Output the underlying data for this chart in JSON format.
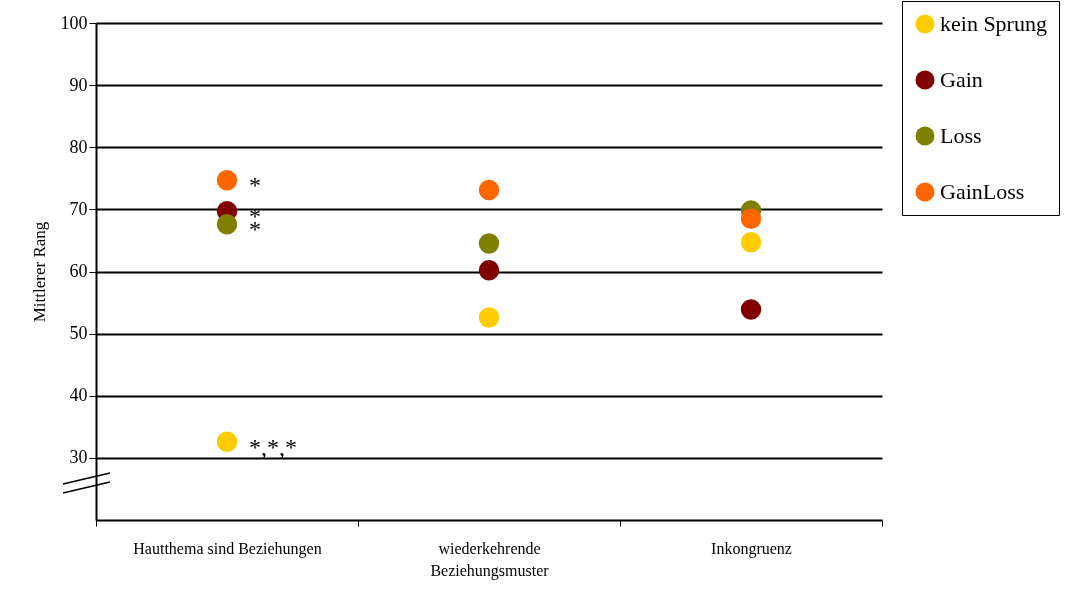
{
  "chart_data": {
    "type": "scatter",
    "ylabel": "Mittlerer Rang",
    "categories": [
      "Hautthema sind Beziehungen",
      "wiederkehrende Beziehungsmuster",
      "Inkongruenz"
    ],
    "series": [
      {
        "name": "kein Sprung",
        "color": "#ffcc00",
        "values": [
          32.6,
          52.6,
          64.7
        ]
      },
      {
        "name": "Gain",
        "color": "#800000",
        "values": [
          69.7,
          60.2,
          53.9
        ]
      },
      {
        "name": "Loss",
        "color": "#808000",
        "values": [
          67.6,
          64.5,
          69.8
        ]
      },
      {
        "name": "GainLoss",
        "color": "#ff6600",
        "values": [
          74.7,
          73.1,
          68.5
        ]
      }
    ],
    "ylim": [
      20,
      100
    ],
    "yticks": [
      30,
      40,
      50,
      60,
      70,
      80,
      90,
      100
    ],
    "grid": "y",
    "legend": "right",
    "marker": "circle",
    "annotations": [
      {
        "text": "*",
        "x": "Hautthema sind Beziehungen",
        "y": 74.7
      },
      {
        "text": "*",
        "x": "Hautthema sind Beziehungen",
        "y": 69.7
      },
      {
        "text": "*",
        "x": "Hautthema sind Beziehungen",
        "y": 67.6
      },
      {
        "text": "*,*,*",
        "x": "Hautthema sind Beziehungen",
        "y": 32.6
      }
    ]
  }
}
